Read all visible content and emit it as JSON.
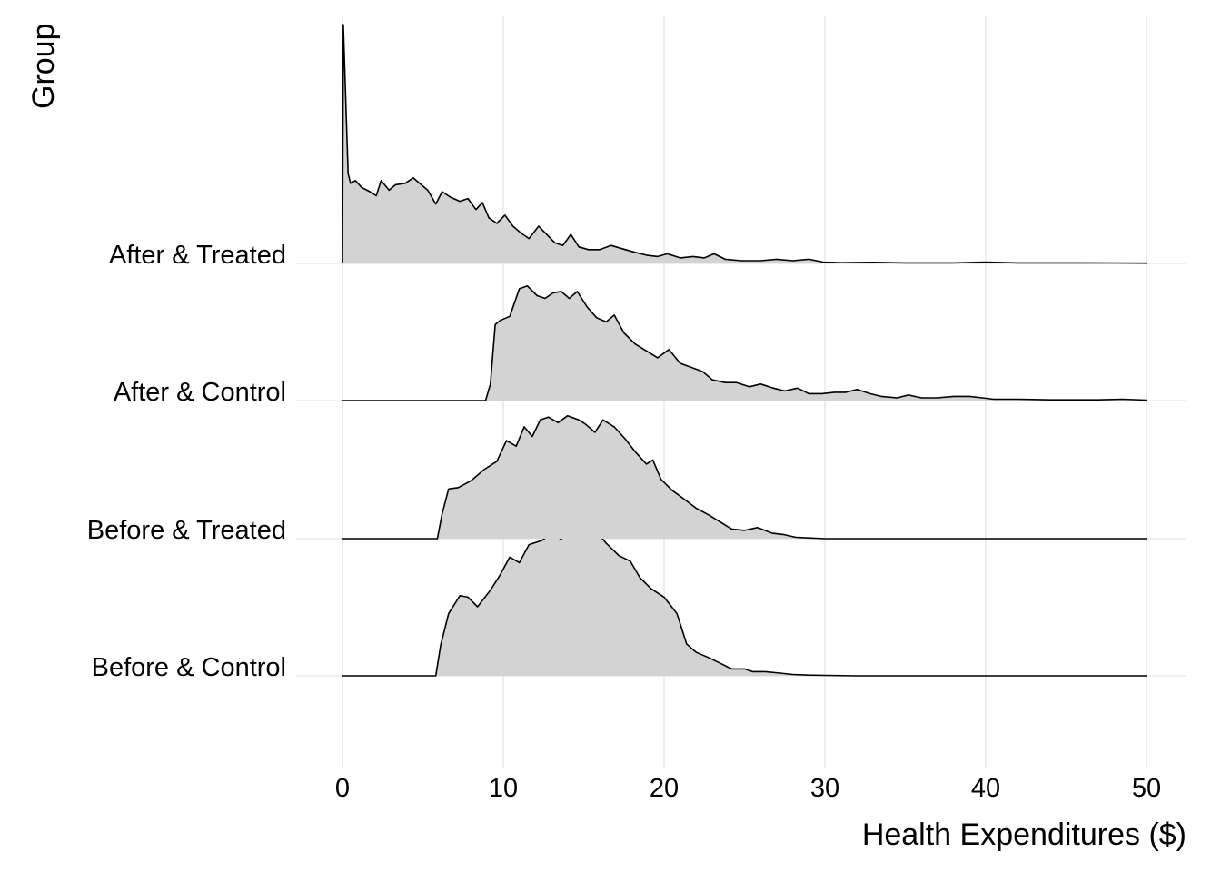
{
  "chart_data": {
    "type": "area",
    "subtype": "ridgeline-density",
    "xlabel": "Health Expenditures ($)",
    "ylabel": "Group",
    "xlim": [
      0,
      50
    ],
    "xticks": [
      "0",
      "10",
      "20",
      "30",
      "40",
      "50"
    ],
    "grid": true,
    "legend": "none",
    "fill_color": "#d3d3d3",
    "line_color": "#000000",
    "series": [
      {
        "name": "Before & Control",
        "points": [
          [
            0,
            0
          ],
          [
            5.8,
            0
          ],
          [
            6.1,
            0.22
          ],
          [
            6.6,
            0.45
          ],
          [
            7.3,
            0.58
          ],
          [
            7.8,
            0.57
          ],
          [
            8.4,
            0.5
          ],
          [
            9.2,
            0.62
          ],
          [
            9.8,
            0.73
          ],
          [
            10.4,
            0.86
          ],
          [
            11.0,
            0.82
          ],
          [
            11.6,
            0.95
          ],
          [
            12.4,
            0.98
          ],
          [
            13.0,
            1.03
          ],
          [
            13.6,
            0.99
          ],
          [
            14.4,
            1.08
          ],
          [
            15.0,
            1.1
          ],
          [
            15.7,
            1.06
          ],
          [
            16.4,
            0.96
          ],
          [
            17.2,
            0.87
          ],
          [
            17.9,
            0.83
          ],
          [
            18.5,
            0.71
          ],
          [
            19.2,
            0.63
          ],
          [
            20.0,
            0.57
          ],
          [
            20.8,
            0.45
          ],
          [
            21.4,
            0.23
          ],
          [
            22.0,
            0.17
          ],
          [
            22.8,
            0.13
          ],
          [
            23.5,
            0.09
          ],
          [
            24.2,
            0.05
          ],
          [
            25.0,
            0.05
          ],
          [
            25.5,
            0.03
          ],
          [
            26.3,
            0.03
          ],
          [
            27.2,
            0.02
          ],
          [
            28.0,
            0.01
          ],
          [
            29.0,
            0.005
          ],
          [
            30.0,
            0.003
          ],
          [
            32.0,
            0
          ],
          [
            50,
            0
          ]
        ]
      },
      {
        "name": "Before & Treated",
        "points": [
          [
            0,
            0
          ],
          [
            5.9,
            0
          ],
          [
            6.2,
            0.18
          ],
          [
            6.6,
            0.36
          ],
          [
            7.2,
            0.37
          ],
          [
            8.0,
            0.42
          ],
          [
            8.8,
            0.5
          ],
          [
            9.6,
            0.56
          ],
          [
            10.2,
            0.71
          ],
          [
            10.8,
            0.67
          ],
          [
            11.3,
            0.81
          ],
          [
            11.8,
            0.74
          ],
          [
            12.3,
            0.86
          ],
          [
            12.8,
            0.88
          ],
          [
            13.4,
            0.84
          ],
          [
            14.0,
            0.89
          ],
          [
            14.7,
            0.86
          ],
          [
            15.1,
            0.83
          ],
          [
            15.7,
            0.77
          ],
          [
            16.2,
            0.86
          ],
          [
            16.9,
            0.81
          ],
          [
            17.6,
            0.72
          ],
          [
            18.2,
            0.63
          ],
          [
            18.9,
            0.54
          ],
          [
            19.3,
            0.57
          ],
          [
            19.8,
            0.43
          ],
          [
            20.5,
            0.35
          ],
          [
            21.2,
            0.29
          ],
          [
            22.0,
            0.22
          ],
          [
            22.8,
            0.17
          ],
          [
            23.5,
            0.12
          ],
          [
            24.2,
            0.07
          ],
          [
            25.0,
            0.06
          ],
          [
            25.8,
            0.08
          ],
          [
            26.7,
            0.04
          ],
          [
            27.4,
            0.03
          ],
          [
            28.2,
            0.01
          ],
          [
            29.0,
            0.005
          ],
          [
            30.0,
            0
          ],
          [
            50,
            0
          ]
        ]
      },
      {
        "name": "After & Control",
        "points": [
          [
            0,
            0
          ],
          [
            8.9,
            0
          ],
          [
            9.2,
            0.12
          ],
          [
            9.5,
            0.55
          ],
          [
            9.8,
            0.58
          ],
          [
            10.4,
            0.61
          ],
          [
            11.0,
            0.81
          ],
          [
            11.5,
            0.83
          ],
          [
            12.1,
            0.76
          ],
          [
            12.6,
            0.74
          ],
          [
            13.1,
            0.78
          ],
          [
            13.6,
            0.79
          ],
          [
            14.1,
            0.74
          ],
          [
            14.6,
            0.79
          ],
          [
            15.2,
            0.68
          ],
          [
            15.8,
            0.6
          ],
          [
            16.4,
            0.57
          ],
          [
            16.9,
            0.62
          ],
          [
            17.5,
            0.49
          ],
          [
            18.2,
            0.41
          ],
          [
            18.9,
            0.36
          ],
          [
            19.6,
            0.31
          ],
          [
            20.3,
            0.37
          ],
          [
            21.0,
            0.27
          ],
          [
            21.7,
            0.24
          ],
          [
            22.4,
            0.21
          ],
          [
            23.0,
            0.15
          ],
          [
            23.8,
            0.13
          ],
          [
            24.5,
            0.13
          ],
          [
            25.3,
            0.1
          ],
          [
            26.0,
            0.12
          ],
          [
            26.8,
            0.09
          ],
          [
            27.5,
            0.07
          ],
          [
            28.3,
            0.09
          ],
          [
            29.0,
            0.05
          ],
          [
            29.8,
            0.05
          ],
          [
            30.6,
            0.06
          ],
          [
            31.3,
            0.06
          ],
          [
            32.0,
            0.08
          ],
          [
            32.8,
            0.05
          ],
          [
            33.5,
            0.03
          ],
          [
            34.5,
            0.02
          ],
          [
            35.2,
            0.04
          ],
          [
            36.0,
            0.02
          ],
          [
            37.0,
            0.02
          ],
          [
            38.0,
            0.03
          ],
          [
            39.0,
            0.03
          ],
          [
            39.8,
            0.02
          ],
          [
            40.5,
            0.01
          ],
          [
            42.0,
            0.01
          ],
          [
            44.0,
            0.005
          ],
          [
            47.0,
            0.005
          ],
          [
            48.5,
            0.01
          ],
          [
            50,
            0.003
          ]
        ]
      },
      {
        "name": "After & Treated",
        "points": [
          [
            0,
            0
          ],
          [
            0.05,
            1.73
          ],
          [
            0.2,
            1.2
          ],
          [
            0.35,
            0.65
          ],
          [
            0.5,
            0.58
          ],
          [
            0.8,
            0.6
          ],
          [
            1.2,
            0.55
          ],
          [
            1.7,
            0.52
          ],
          [
            2.1,
            0.49
          ],
          [
            2.4,
            0.6
          ],
          [
            2.9,
            0.53
          ],
          [
            3.3,
            0.57
          ],
          [
            3.9,
            0.58
          ],
          [
            4.4,
            0.62
          ],
          [
            4.9,
            0.57
          ],
          [
            5.3,
            0.53
          ],
          [
            5.8,
            0.43
          ],
          [
            6.2,
            0.52
          ],
          [
            6.7,
            0.48
          ],
          [
            7.3,
            0.45
          ],
          [
            7.8,
            0.47
          ],
          [
            8.3,
            0.39
          ],
          [
            8.7,
            0.44
          ],
          [
            9.1,
            0.33
          ],
          [
            9.6,
            0.29
          ],
          [
            10.1,
            0.35
          ],
          [
            10.6,
            0.27
          ],
          [
            11.1,
            0.22
          ],
          [
            11.6,
            0.18
          ],
          [
            12.2,
            0.27
          ],
          [
            12.7,
            0.21
          ],
          [
            13.2,
            0.15
          ],
          [
            13.7,
            0.13
          ],
          [
            14.2,
            0.21
          ],
          [
            14.7,
            0.12
          ],
          [
            15.3,
            0.1
          ],
          [
            16.0,
            0.1
          ],
          [
            16.7,
            0.13
          ],
          [
            17.3,
            0.11
          ],
          [
            18.2,
            0.08
          ],
          [
            18.9,
            0.06
          ],
          [
            19.6,
            0.05
          ],
          [
            20.2,
            0.07
          ],
          [
            21.0,
            0.04
          ],
          [
            21.8,
            0.05
          ],
          [
            22.5,
            0.04
          ],
          [
            23.1,
            0.07
          ],
          [
            23.8,
            0.03
          ],
          [
            24.8,
            0.02
          ],
          [
            26.0,
            0.02
          ],
          [
            27.0,
            0.03
          ],
          [
            28.0,
            0.02
          ],
          [
            29.0,
            0.03
          ],
          [
            29.9,
            0.01
          ],
          [
            31.0,
            0.005
          ],
          [
            33.0,
            0.008
          ],
          [
            35.0,
            0.004
          ],
          [
            38.0,
            0.004
          ],
          [
            40.0,
            0.01
          ],
          [
            42.0,
            0.004
          ],
          [
            44.0,
            0.004
          ],
          [
            46.0,
            0.004
          ],
          [
            48.0,
            0.003
          ],
          [
            50,
            0.002
          ]
        ]
      }
    ]
  }
}
